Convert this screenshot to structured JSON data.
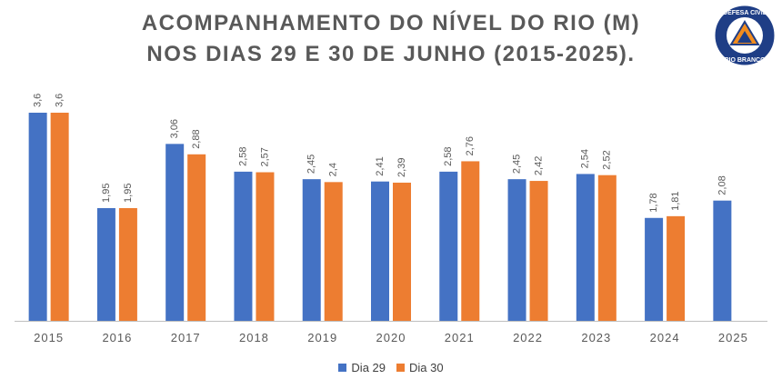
{
  "colors": {
    "series_1": "#4472C4",
    "series_2": "#ED7D31",
    "axis": "#BFBFBF",
    "label": "#595959"
  },
  "logo": {
    "text": "DEFESA CIVIL RIO BRANCO",
    "icon": "civil-defense-emblem"
  },
  "chart_data": {
    "type": "bar",
    "title": "ACOMPANHAMENTO DO NÍVEL DO RIO (M)",
    "subtitle": "NOS DIAS 29 E 30 DE JUNHO (2015-2025).",
    "categories": [
      "2015",
      "2016",
      "2017",
      "2018",
      "2019",
      "2020",
      "2021",
      "2022",
      "2023",
      "2024",
      "2025"
    ],
    "series": [
      {
        "name": "Dia 29",
        "values": [
          3.6,
          1.95,
          3.06,
          2.58,
          2.45,
          2.41,
          2.58,
          2.45,
          2.54,
          1.78,
          2.08
        ],
        "labels": [
          "3,6",
          "1,95",
          "3,06",
          "2,58",
          "2,45",
          "2,41",
          "2,58",
          "2,45",
          "2,54",
          "1,78",
          "2,08"
        ]
      },
      {
        "name": "Dia 30",
        "values": [
          3.6,
          1.95,
          2.88,
          2.57,
          2.4,
          2.39,
          2.76,
          2.42,
          2.52,
          1.81,
          null
        ],
        "labels": [
          "3,6",
          "1,95",
          "2,88",
          "2,57",
          "2,4",
          "2,39",
          "2,76",
          "2,42",
          "2,52",
          "1,81",
          ""
        ]
      }
    ],
    "xlabel": "",
    "ylabel": "",
    "ylim": [
      0,
      3.6
    ],
    "grid": false,
    "legend": "bottom"
  }
}
